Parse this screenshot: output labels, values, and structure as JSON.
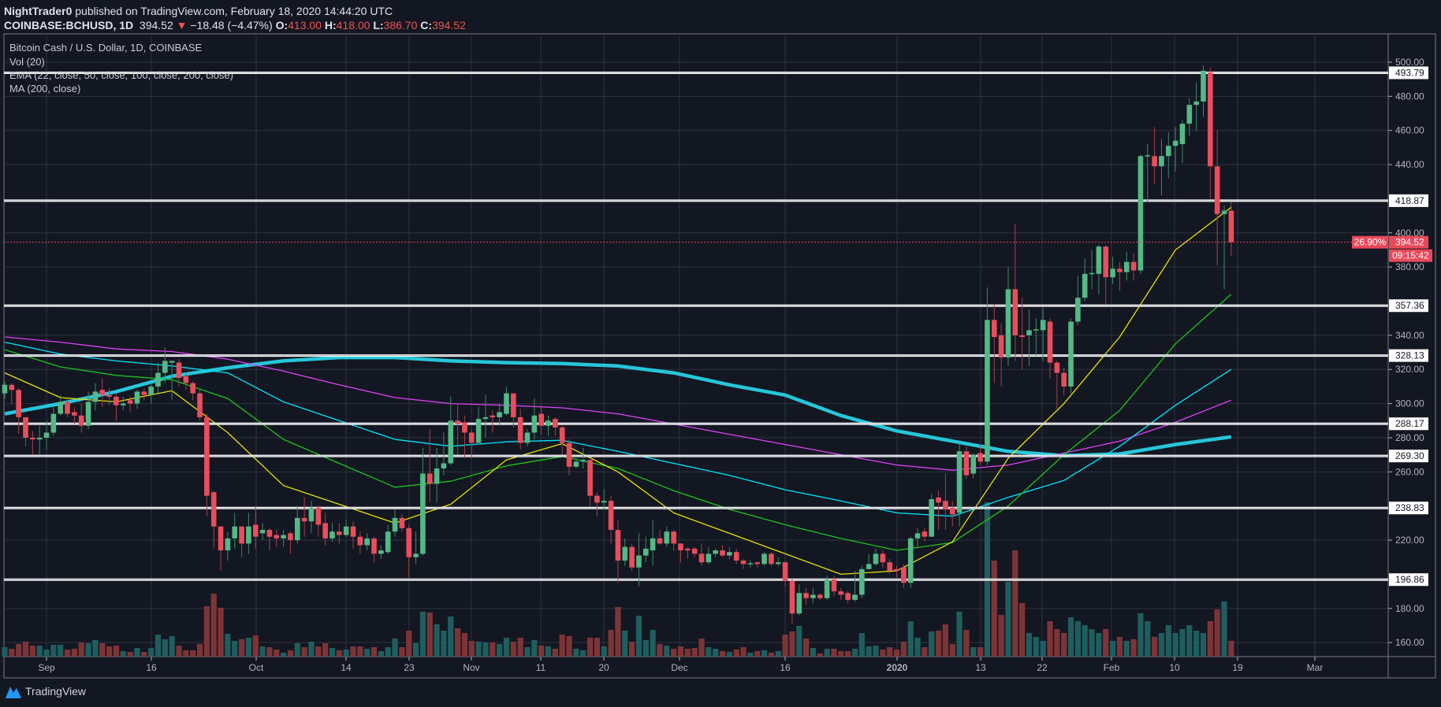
{
  "header": {
    "author": "NightTrader0",
    "published": "published on TradingView.com, February 18, 2020 14:44:20 UTC",
    "symbol": "COINBASE:BCHUSD, 1D",
    "last": "394.52",
    "change": "−18.48 (−4.47%)",
    "o_label": "O:",
    "o": "413.00",
    "h_label": "H:",
    "h": "418.00",
    "l_label": "L:",
    "l": "386.70",
    "c_label": "C:",
    "c": "394.52"
  },
  "legend": {
    "title": "Bitcoin Cash / U.S. Dollar, 1D, COINBASE",
    "vol": "Vol (20)",
    "ema": "EMA (22, close, 50, close, 100, close, 200, close)",
    "ma": "MA (200, close)"
  },
  "footer": {
    "brand": "TradingView"
  },
  "colors": {
    "background": "#131722",
    "up": "#53b987",
    "down": "#eb4d5c",
    "vol_up": "#1f5e5e",
    "vol_down": "#7e3436",
    "ema22": "#e8e000",
    "ema50": "#19c619",
    "ema100": "#00e5ff",
    "ema200": "#e040fb",
    "ma200": "#26c6da",
    "level": "#ffffff",
    "grid": "#2f3341",
    "last_price": "#e9495a"
  },
  "chart_data": {
    "type": "candlestick",
    "title": "Bitcoin Cash / U.S. Dollar, 1D, COINBASE",
    "ylim": [
      150,
      505
    ],
    "grid": true,
    "y_ticks": [
      "160.00",
      "180.00",
      "220.00",
      "260.00",
      "280.00",
      "300.00",
      "320.00",
      "340.00",
      "380.00",
      "400.00",
      "440.00",
      "460.00",
      "480.00",
      "500.00"
    ],
    "x_ticks": [
      "Sep",
      "16",
      "Oct",
      "14",
      "23",
      "Nov",
      "11",
      "20",
      "Dec",
      "16",
      "2020",
      "13",
      "22",
      "Feb",
      "10",
      "19",
      "Mar"
    ],
    "levels": [
      493.79,
      418.87,
      357.36,
      328.13,
      288.17,
      269.3,
      238.83,
      196.86
    ],
    "level_labels": [
      "493.79",
      "418.87",
      "357.36",
      "328.13",
      "288.17",
      "269.30",
      "238.83",
      "196.86"
    ],
    "last_price": 394.52,
    "last_price_label": "394.52",
    "last_pct_label": "26.90%",
    "countdown": "09:15:42",
    "ohlc": [
      [
        306,
        313,
        303,
        311
      ],
      [
        311,
        312,
        300,
        308
      ],
      [
        308,
        309,
        282,
        292
      ],
      [
        292,
        292,
        275,
        280
      ],
      [
        280,
        284,
        270,
        279
      ],
      [
        279,
        287,
        270,
        280
      ],
      [
        280,
        290,
        273,
        283
      ],
      [
        283,
        298,
        281,
        294
      ],
      [
        294,
        305,
        293,
        301
      ],
      [
        301,
        303,
        292,
        294
      ],
      [
        295,
        298,
        288,
        293
      ],
      [
        293,
        300,
        283,
        287
      ],
      [
        287,
        307,
        285,
        301
      ],
      [
        301,
        312,
        296,
        307
      ],
      [
        308,
        315,
        298,
        305
      ],
      [
        305,
        309,
        299,
        304
      ],
      [
        304,
        306,
        290,
        299
      ],
      [
        299,
        304,
        296,
        300
      ],
      [
        302,
        304,
        295,
        300
      ],
      [
        300,
        308,
        297,
        307
      ],
      [
        307,
        309,
        302,
        305
      ],
      [
        305,
        312,
        300,
        310
      ],
      [
        310,
        324,
        306,
        318
      ],
      [
        318,
        333,
        312,
        325
      ],
      [
        324,
        325,
        302,
        325
      ],
      [
        324,
        326,
        310,
        315
      ],
      [
        316,
        318,
        308,
        312
      ],
      [
        312,
        313,
        302,
        306
      ],
      [
        306,
        308,
        290,
        292
      ],
      [
        292,
        294,
        234,
        246
      ],
      [
        248,
        249,
        215,
        228
      ],
      [
        228,
        228,
        202,
        214
      ],
      [
        214,
        225,
        208,
        221
      ],
      [
        221,
        236,
        215,
        228
      ],
      [
        228,
        228,
        210,
        218
      ],
      [
        218,
        236,
        212,
        228
      ],
      [
        229,
        240,
        215,
        222
      ],
      [
        224,
        230,
        220,
        226
      ],
      [
        226,
        227,
        214,
        222
      ],
      [
        223,
        226,
        216,
        221
      ],
      [
        221,
        226,
        216,
        223
      ],
      [
        224,
        225,
        212,
        220
      ],
      [
        220,
        240,
        218,
        233
      ],
      [
        233,
        245,
        222,
        231
      ],
      [
        231,
        243,
        224,
        239
      ],
      [
        239,
        240,
        222,
        229
      ],
      [
        230,
        236,
        217,
        221
      ],
      [
        221,
        230,
        219,
        225
      ],
      [
        225,
        230,
        218,
        223
      ],
      [
        223,
        232,
        222,
        228
      ],
      [
        228,
        231,
        215,
        222
      ],
      [
        222,
        225,
        212,
        217
      ],
      [
        217,
        224,
        214,
        221
      ],
      [
        221,
        222,
        207,
        212
      ],
      [
        212,
        217,
        209,
        214
      ],
      [
        213,
        229,
        212,
        225
      ],
      [
        225,
        238,
        222,
        233
      ],
      [
        233,
        235,
        225,
        227
      ],
      [
        227,
        229,
        198,
        210
      ],
      [
        210,
        225,
        206,
        212
      ],
      [
        212,
        274,
        211,
        259
      ],
      [
        259,
        285,
        242,
        253
      ],
      [
        253,
        274,
        242,
        262
      ],
      [
        262,
        283,
        258,
        265
      ],
      [
        265,
        304,
        264,
        290
      ],
      [
        290,
        300,
        270,
        288
      ],
      [
        289,
        293,
        268,
        283
      ],
      [
        283,
        285,
        268,
        277
      ],
      [
        277,
        298,
        276,
        291
      ],
      [
        291,
        305,
        280,
        292
      ],
      [
        293,
        296,
        283,
        292
      ],
      [
        292,
        300,
        287,
        295
      ],
      [
        294,
        310,
        293,
        306
      ],
      [
        306,
        306,
        286,
        292
      ],
      [
        292,
        297,
        273,
        277
      ],
      [
        277,
        285,
        275,
        283
      ],
      [
        283,
        303,
        279,
        293
      ],
      [
        294,
        299,
        282,
        287
      ],
      [
        287,
        293,
        281,
        290
      ],
      [
        291,
        292,
        281,
        286
      ],
      [
        286,
        287,
        270,
        277
      ],
      [
        277,
        279,
        258,
        263
      ],
      [
        263,
        269,
        262,
        266
      ],
      [
        266,
        274,
        262,
        267
      ],
      [
        267,
        267,
        240,
        246
      ],
      [
        246,
        248,
        234,
        242
      ],
      [
        242,
        250,
        238,
        243
      ],
      [
        243,
        246,
        218,
        226
      ],
      [
        226,
        232,
        195,
        208
      ],
      [
        208,
        221,
        205,
        216
      ],
      [
        216,
        218,
        202,
        204
      ],
      [
        204,
        224,
        193,
        211
      ],
      [
        211,
        222,
        207,
        215
      ],
      [
        214,
        232,
        205,
        221
      ],
      [
        221,
        226,
        217,
        218
      ],
      [
        218,
        228,
        216,
        225
      ],
      [
        225,
        226,
        214,
        218
      ],
      [
        218,
        218,
        207,
        214
      ],
      [
        215,
        216,
        209,
        214
      ],
      [
        215,
        216,
        210,
        212
      ],
      [
        212,
        218,
        205,
        207
      ],
      [
        207,
        216,
        206,
        212
      ],
      [
        212,
        215,
        210,
        214
      ],
      [
        214,
        217,
        210,
        211
      ],
      [
        211,
        216,
        209,
        213
      ],
      [
        213,
        215,
        206,
        208
      ],
      [
        208,
        209,
        203,
        206
      ],
      [
        206,
        208,
        204,
        206.5
      ],
      [
        207,
        207,
        204,
        206
      ],
      [
        206,
        213,
        205,
        212
      ],
      [
        212,
        213,
        205,
        206
      ],
      [
        206,
        210,
        205,
        207
      ],
      [
        207,
        208,
        193,
        196
      ],
      [
        196,
        197,
        171,
        177
      ],
      [
        177,
        194,
        176,
        189
      ],
      [
        189,
        192,
        182,
        186
      ],
      [
        186,
        192,
        183,
        188
      ],
      [
        188,
        189,
        185,
        186
      ],
      [
        186,
        199,
        185,
        197
      ],
      [
        197,
        199,
        187,
        190
      ],
      [
        190,
        192,
        185,
        188
      ],
      [
        189,
        190,
        183,
        185
      ],
      [
        185,
        202,
        184,
        188
      ],
      [
        188,
        205,
        186,
        203
      ],
      [
        203,
        212,
        203,
        206
      ],
      [
        206,
        215,
        205,
        212
      ],
      [
        212,
        214,
        204,
        207
      ],
      [
        207,
        209,
        200,
        202
      ],
      [
        203,
        205,
        198,
        202
      ],
      [
        204,
        206,
        192,
        195
      ],
      [
        195,
        222,
        192,
        221
      ],
      [
        221,
        227,
        215,
        224
      ],
      [
        225,
        227,
        219,
        222
      ],
      [
        222,
        247,
        222,
        244
      ],
      [
        245,
        249,
        226,
        242
      ],
      [
        243,
        259,
        226,
        238
      ],
      [
        239,
        243,
        228,
        235
      ],
      [
        236,
        277,
        228,
        272
      ],
      [
        272,
        275,
        256,
        258
      ],
      [
        259,
        271,
        256,
        270
      ],
      [
        271,
        276,
        264,
        266
      ],
      [
        266,
        368,
        264,
        349
      ],
      [
        349,
        358,
        312,
        339
      ],
      [
        340,
        347,
        310,
        327
      ],
      [
        327,
        380,
        322,
        367
      ],
      [
        367,
        405,
        325,
        340
      ],
      [
        340,
        362,
        320,
        339
      ],
      [
        340,
        355,
        322,
        343
      ],
      [
        343,
        350,
        328,
        343.5
      ],
      [
        343,
        356,
        325,
        349
      ],
      [
        348,
        350,
        315,
        324
      ],
      [
        324,
        325,
        297,
        318
      ],
      [
        318,
        321,
        305,
        310
      ],
      [
        310,
        350,
        306,
        348
      ],
      [
        348,
        375,
        346,
        362
      ],
      [
        362,
        385,
        360,
        376
      ],
      [
        376,
        390,
        367,
        376.5
      ],
      [
        376,
        393,
        364,
        392
      ],
      [
        392,
        393,
        358,
        374
      ],
      [
        374,
        386,
        370,
        379
      ],
      [
        379,
        383,
        366,
        377
      ],
      [
        377,
        389,
        372,
        383
      ],
      [
        383,
        388,
        372,
        378
      ],
      [
        378,
        446,
        376,
        445
      ],
      [
        445,
        452,
        418,
        445.5
      ],
      [
        445,
        462,
        429,
        439
      ],
      [
        439,
        455,
        422,
        445
      ],
      [
        445,
        459,
        432,
        451
      ],
      [
        451,
        462,
        436,
        454
      ],
      [
        452,
        466,
        441,
        464
      ],
      [
        464,
        479,
        457,
        475
      ],
      [
        475,
        488,
        460,
        477
      ],
      [
        477,
        498,
        468,
        495
      ],
      [
        494,
        497,
        420,
        439
      ],
      [
        439,
        460,
        381,
        411
      ],
      [
        411,
        416,
        367,
        413
      ],
      [
        413,
        418,
        386.7,
        394.52
      ]
    ],
    "volume_relative": [
      12,
      10,
      16,
      19,
      14,
      14,
      9,
      15,
      15,
      9,
      10,
      18,
      17,
      21,
      17,
      13,
      14,
      7,
      6,
      11,
      6,
      11,
      28,
      22,
      26,
      14,
      8,
      8,
      16,
      64,
      80,
      62,
      29,
      20,
      22,
      24,
      27,
      13,
      12,
      9,
      5,
      8,
      17,
      12,
      19,
      13,
      17,
      11,
      8,
      9,
      13,
      13,
      10,
      12,
      7,
      12,
      23,
      12,
      33,
      17,
      57,
      56,
      41,
      33,
      51,
      36,
      30,
      20,
      19,
      18,
      18,
      16,
      24,
      19,
      24,
      12,
      21,
      14,
      13,
      10,
      28,
      26,
      10,
      8,
      24,
      24,
      13,
      34,
      63,
      33,
      19,
      52,
      21,
      34,
      16,
      14,
      10,
      13,
      10,
      11,
      23,
      12,
      10,
      7,
      6,
      9,
      12,
      5,
      7,
      8,
      5,
      7,
      28,
      32,
      39,
      23,
      11,
      4,
      10,
      10,
      7,
      7,
      10,
      30,
      13,
      14,
      9,
      12,
      9,
      19,
      45,
      24,
      12,
      32,
      33,
      41,
      16,
      57,
      34,
      12,
      12,
      196,
      122,
      53,
      95,
      135,
      68,
      30,
      25,
      20,
      45,
      35,
      30,
      50,
      45,
      40,
      35,
      30,
      35,
      20,
      25,
      20,
      22,
      55,
      45,
      25,
      30,
      40,
      30,
      35,
      40,
      33,
      30,
      45,
      60,
      70,
      20
    ],
    "indicators_every_8_bars": {
      "ema22": [
        318,
        303.5,
        301,
        307.5,
        283,
        252,
        241,
        230,
        241,
        267,
        276.5,
        260,
        236,
        224,
        212,
        200,
        202,
        219,
        268,
        300,
        339,
        390,
        415
      ],
      "ema50": [
        331.6,
        321.5,
        316.5,
        314,
        303,
        279,
        265,
        251,
        254.5,
        263.5,
        269,
        262,
        249,
        238,
        229,
        221,
        214,
        218.6,
        240,
        270,
        296,
        335,
        364
      ],
      "ema100": [
        336,
        329,
        325,
        322,
        318,
        301,
        290,
        279,
        275,
        277.6,
        278.5,
        272,
        265,
        258,
        249.5,
        243,
        236,
        234,
        245,
        255,
        275,
        299,
        320
      ],
      "ema200": [
        339,
        336,
        332,
        330.5,
        326,
        319,
        311,
        303.5,
        300,
        299,
        297.5,
        294,
        288,
        282,
        276,
        270,
        264,
        261,
        264,
        271,
        278,
        289,
        302
      ],
      "ma200": [
        294,
        300,
        307,
        316,
        321,
        325,
        327,
        327,
        325,
        324,
        323.5,
        322,
        318,
        311,
        305,
        293,
        284,
        278,
        272,
        269.5,
        270.5,
        276,
        280.5
      ]
    }
  }
}
